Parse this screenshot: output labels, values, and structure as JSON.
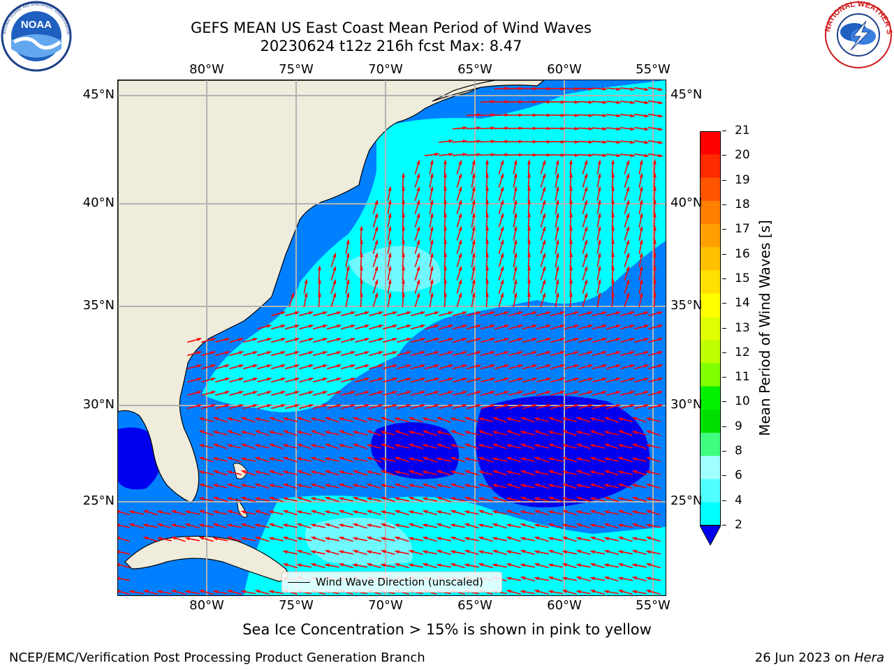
{
  "header": {
    "title_line1": "GEFS MEAN US East Coast Mean Period of Wind Waves",
    "title_line2": "20230624 t12z 216h fcst   Max: 8.47"
  },
  "logos": {
    "left": {
      "text": "NOAA",
      "ring_text": "NATIONAL OCEANIC AND ATMOSPHERIC ADMINISTRATION · U.S. DEPARTMENT OF COMMERCE",
      "icon": "noaa-logo"
    },
    "right": {
      "ring_text": "NATIONAL WEATHER SERVICE",
      "icon": "nws-logo"
    }
  },
  "map": {
    "lon_labels": [
      "80°W",
      "75°W",
      "70°W",
      "65°W",
      "60°W",
      "55°W"
    ],
    "lat_labels": [
      "45°N",
      "40°N",
      "35°N",
      "30°N",
      "25°N"
    ],
    "legend_label": "Wind Wave Direction (unscaled)",
    "colors": {
      "land": "#efecdc",
      "ocean_2_4": "#0080ff",
      "ocean_4_6": "#00ffff",
      "ocean_lt_2": "#0000ee",
      "ocean_6_8": "#6ff9ff",
      "arrow": "#ff0000",
      "grid": "#b3b3b3"
    }
  },
  "colorbar": {
    "title": "Mean Period of Wind Waves [s]",
    "ticks": [
      "21",
      "20",
      "19",
      "18",
      "17",
      "16",
      "15",
      "14",
      "13",
      "12",
      "11",
      "10",
      "9",
      "8",
      "6",
      "4",
      "2"
    ],
    "colors": [
      "#ff0000",
      "#ff2a00",
      "#ff5500",
      "#ff7f00",
      "#ffa000",
      "#ffc000",
      "#ffe000",
      "#ffff00",
      "#e0ff00",
      "#c0ff00",
      "#80ff00",
      "#00f000",
      "#00e000",
      "#40ff80",
      "#a0ffff",
      "#50ffff",
      "#00ffff",
      "#0080ff"
    ]
  },
  "footer": {
    "note": "Sea Ice Concentration > 15% is shown in pink to yellow",
    "left": "NCEP/EMC/Verification Post Processing Product Generation Branch",
    "right_date": "26 Jun 2023 on ",
    "right_machine": "Hera"
  }
}
